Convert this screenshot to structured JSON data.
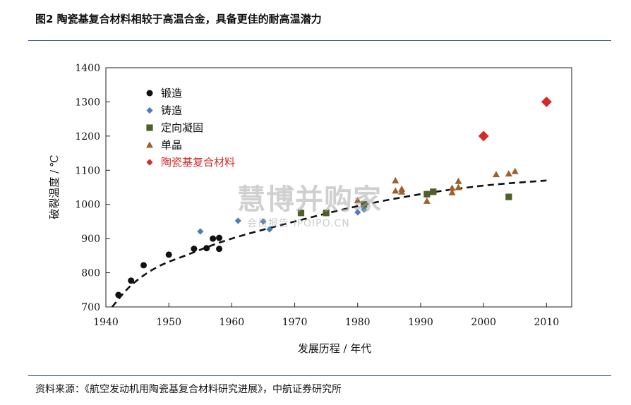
{
  "figure": {
    "title": "图2 陶瓷基复合材料相较于高温合金，具备更佳的耐高温潜力",
    "source": "资料来源：《航空发动机用陶瓷基复合材料研究进展》，中航证券研究所",
    "watermark": "慧博并购家",
    "watermark_sub": "会员报告 IPOIPO.CN",
    "rule_color": "#2b5b86"
  },
  "chart_data": {
    "type": "scatter",
    "xlabel": "发展历程 / 年代",
    "ylabel": "破裂温度 / ℃",
    "xlim": [
      1940,
      2014
    ],
    "ylim": [
      700,
      1400
    ],
    "xticks": [
      1940,
      1950,
      1960,
      1970,
      1980,
      1990,
      2000,
      2010
    ],
    "yticks": [
      700,
      800,
      900,
      1000,
      1100,
      1200,
      1300,
      1400
    ],
    "grid": false,
    "legend_position": "top-left",
    "series": [
      {
        "name": "锻造",
        "marker": "circle",
        "color": "#111111",
        "points": [
          [
            1942,
            735
          ],
          [
            1944,
            777
          ],
          [
            1946,
            822
          ],
          [
            1950,
            853
          ],
          [
            1954,
            870
          ],
          [
            1956,
            872
          ],
          [
            1957,
            900
          ],
          [
            1958,
            902
          ],
          [
            1958,
            870
          ]
        ]
      },
      {
        "name": "铸造",
        "marker": "diamond",
        "color": "#4a7cc0",
        "points": [
          [
            1955,
            921
          ],
          [
            1961,
            952
          ],
          [
            1965,
            950
          ],
          [
            1966,
            927
          ],
          [
            1980,
            977
          ],
          [
            1981,
            985
          ]
        ]
      },
      {
        "name": "定向凝固",
        "marker": "square",
        "color": "#4e5e2c",
        "points": [
          [
            1971,
            975
          ],
          [
            1975,
            975
          ],
          [
            1981,
            1000
          ],
          [
            1991,
            1030
          ],
          [
            1992,
            1037
          ],
          [
            2004,
            1022
          ]
        ]
      },
      {
        "name": "单晶",
        "marker": "triangle",
        "color": "#9c5f2f",
        "points": [
          [
            1980,
            1012
          ],
          [
            1986,
            1040
          ],
          [
            1986,
            1070
          ],
          [
            1987,
            1045
          ],
          [
            1987,
            1037
          ],
          [
            1991,
            1010
          ],
          [
            1995,
            1035
          ],
          [
            1995,
            1048
          ],
          [
            1996,
            1068
          ],
          [
            1996,
            1050
          ],
          [
            2002,
            1088
          ],
          [
            2004,
            1090
          ],
          [
            2005,
            1097
          ]
        ]
      },
      {
        "name": "陶瓷基复合材料",
        "marker": "diamond-large",
        "color": "#d62a2a",
        "points": [
          [
            2000,
            1200
          ],
          [
            2010,
            1300
          ]
        ]
      }
    ],
    "trend_line": {
      "style": "dashed",
      "color": "#111111",
      "points": [
        [
          1941,
          700
        ],
        [
          1944,
          763
        ],
        [
          1948,
          815
        ],
        [
          1953,
          853
        ],
        [
          1960,
          900
        ],
        [
          1970,
          950
        ],
        [
          1980,
          995
        ],
        [
          1990,
          1030
        ],
        [
          2000,
          1055
        ],
        [
          2010,
          1070
        ]
      ]
    }
  }
}
